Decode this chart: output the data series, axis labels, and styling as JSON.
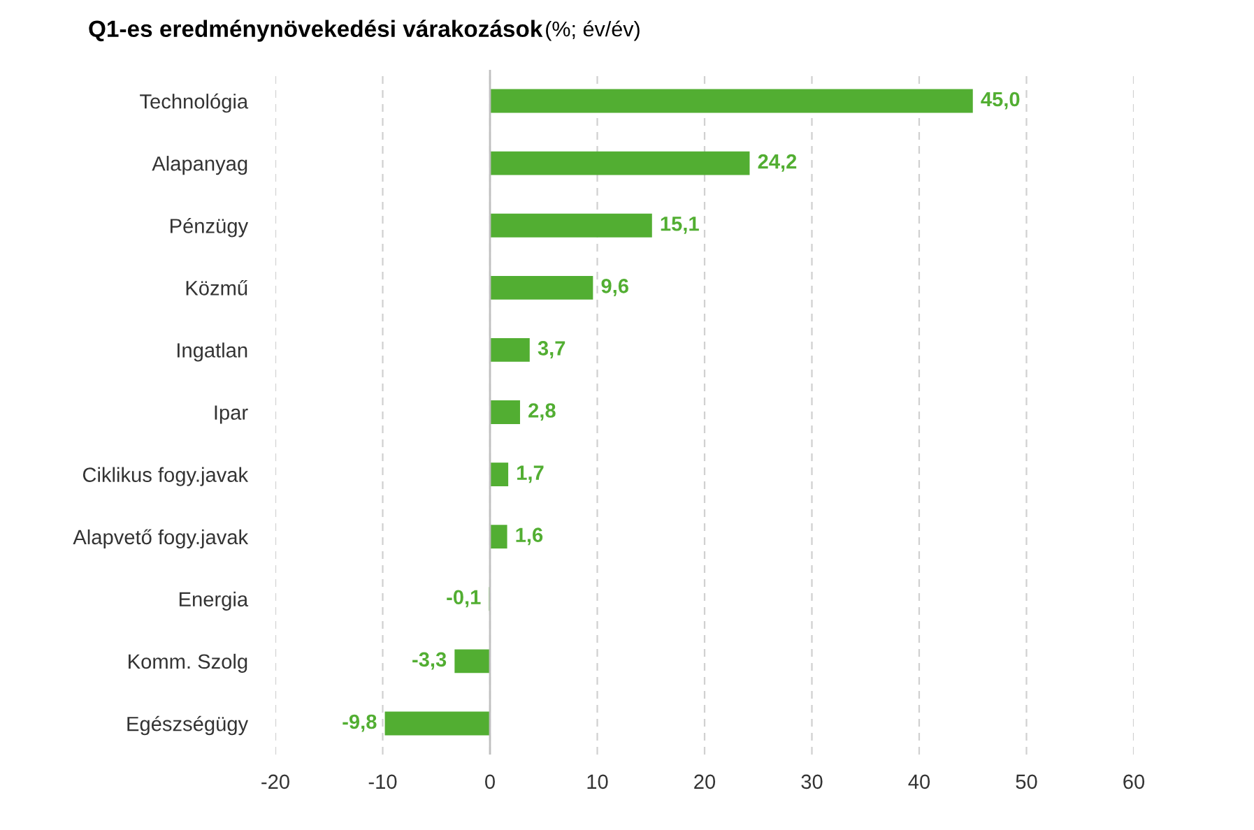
{
  "chart_data": {
    "type": "bar",
    "orientation": "horizontal",
    "title": "Q1-es eredménynövekedési várakozások",
    "subtitle": "(%; év/év)",
    "categories": [
      "Technológia",
      "Alapanyag",
      "Pénzügy",
      "Közmű",
      "Ingatlan",
      "Ipar",
      "Ciklikus fogy.javak",
      "Alapvető fogy.javak",
      "Energia",
      "Komm. Szolg",
      "Egészségügy"
    ],
    "values": [
      45.0,
      24.2,
      15.1,
      9.6,
      3.7,
      2.8,
      1.7,
      1.6,
      -0.1,
      -3.3,
      -9.8
    ],
    "value_labels": [
      "45,0",
      "24,2",
      "15,1",
      "9,6",
      "3,7",
      "2,8",
      "1,7",
      "1,6",
      "-0,1",
      "-3,3",
      "-9,8"
    ],
    "color": "#52ae32",
    "xlim": [
      -20,
      60
    ],
    "xticks": [
      -20,
      -10,
      0,
      10,
      20,
      30,
      40,
      50,
      60
    ],
    "grid": "x",
    "legend": false
  }
}
